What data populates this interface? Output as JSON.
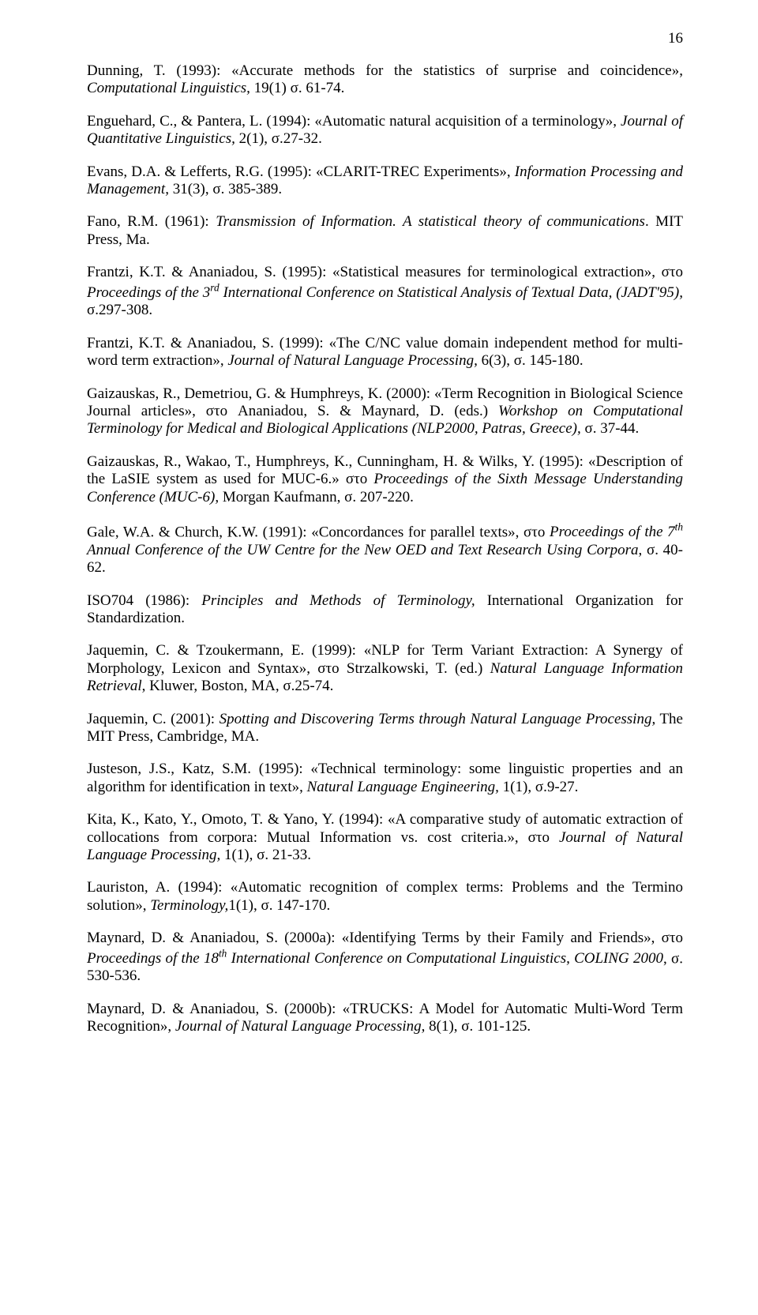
{
  "page_number": "16",
  "font_family": "Times New Roman",
  "font_size_pt": 14,
  "text_color": "#000000",
  "background_color": "#ffffff",
  "references": [
    {
      "html": "Dunning, T. (1993): «Accurate methods for the statistics of surprise and coincidence», <span class='i'>Computational Linguistics,</span> 19(1) σ. 61-74."
    },
    {
      "html": "Enguehard, C., & Pantera, L. (1994): «Automatic natural acquisition of a terminology», <span class='i'>Journal of Quantitative Linguistics,</span> 2(1), σ.27-32."
    },
    {
      "html": "Evans, D.A. & Lefferts, R.G. (1995): «CLARIT-TREC Experiments», <span class='i'>Information Processing and Management,</span> 31(3), σ. 385-389."
    },
    {
      "html": "Fano, R.M. (1961): <span class='i'>Transmission of Information. A statistical theory of communications</span>. MIT Press, Ma."
    },
    {
      "html": "Frantzi, K.T. & Ananiadou, S. (1995): «Statistical measures for terminological extraction», στο <span class='i'>Proceedings of the 3<span class='sup'>rd</span> International Conference on Statistical Analysis of Textual Data, (JADT'95),</span> σ.297-308."
    },
    {
      "html": "Frantzi, K.T. & Ananiadou, S. (1999): «The C/NC value domain independent method for multi-word term extraction», <span class='i'>Journal of Natural Language Processing,</span> 6(3), σ. 145-180."
    },
    {
      "html": "Gaizauskas, R., Demetriou, G. & Humphreys, K. (2000): «Term Recognition in Biological Science Journal articles», στο Ananiadou, S. & Maynard, D. (eds.) <span class='i'>Workshop on Computational Terminology for Medical and Biological Applications (NLP2000, Patras, Greece),</span> σ. 37-44."
    },
    {
      "html": "Gaizauskas, R., Wakao, T., Humphreys, K., Cunningham, H. & Wilks, Y. (1995): «Description of the LaSIE system as used for MUC-6.» στο <span class='i'>Proceedings of the Sixth Message Understanding Conference (MUC-6),</span> Morgan Kaufmann, σ. 207-220."
    },
    {
      "html": "Gale, W.A. & Church, K.W. (1991): «Concordances for parallel texts», στο <span class='i'>Proceedings of the 7<span class='sup'>th</span> Annual Conference of the UW Centre for the New OED and Text Research Using Corpora</span>, σ. 40-62."
    },
    {
      "html": "ISO704 (1986): <span class='i'>Principles and Methods of Terminology,</span> International Organization for Standardization."
    },
    {
      "html": "Jaquemin, C. & Tzoukermann, E. (1999): «NLP for Term Variant Extraction: A Synergy of Morphology, Lexicon and Syntax», στο Strzalkowski, T. (ed.) <span class='i'>Natural Language Information Retrieval</span>, Kluwer, Boston, MA, σ.25-74."
    },
    {
      "html": "Jaquemin, C. (2001): <span class='i'>Spotting and Discovering Terms through Natural Language Processing,</span> The MIT Press, Cambridge, MA."
    },
    {
      "html": "Justeson, J.S., Katz, S.M. (1995): «Technical terminology: some linguistic properties and an algorithm for identification in text», <span class='i'>Natural Language Engineering,</span> 1(1), σ.9-27."
    },
    {
      "html": "Kita, K., Kato, Y., Omoto, T. & Yano, Y. (1994): «A comparative study of automatic extraction of collocations from corpora: Mutual Information vs. cost criteria.», στο <span class='i'>Journal of Natural Language Processing,</span> 1(1), σ. 21-33."
    },
    {
      "html": "Lauriston, A. (1994): «Automatic recognition of complex terms: Problems and the Termino solution», <span class='i'>Terminology,</span>1(1), σ. 147-170."
    },
    {
      "html": "Maynard, D. & Ananiadou, S. (2000a): «Identifying Terms by their Family and Friends», στο <span class='i'>Proceedings of the 18<span class='sup'>th</span> International Conference on Computational Linguistics, COLING 2000</span>, σ. 530-536."
    },
    {
      "html": "Maynard, D. & Ananiadou, S. (2000b): «TRUCKS: A Model for Automatic Multi-Word Term Recognition», <span class='i'>Journal of Natural Language Processing,</span> 8(1), σ. 101-125."
    }
  ]
}
